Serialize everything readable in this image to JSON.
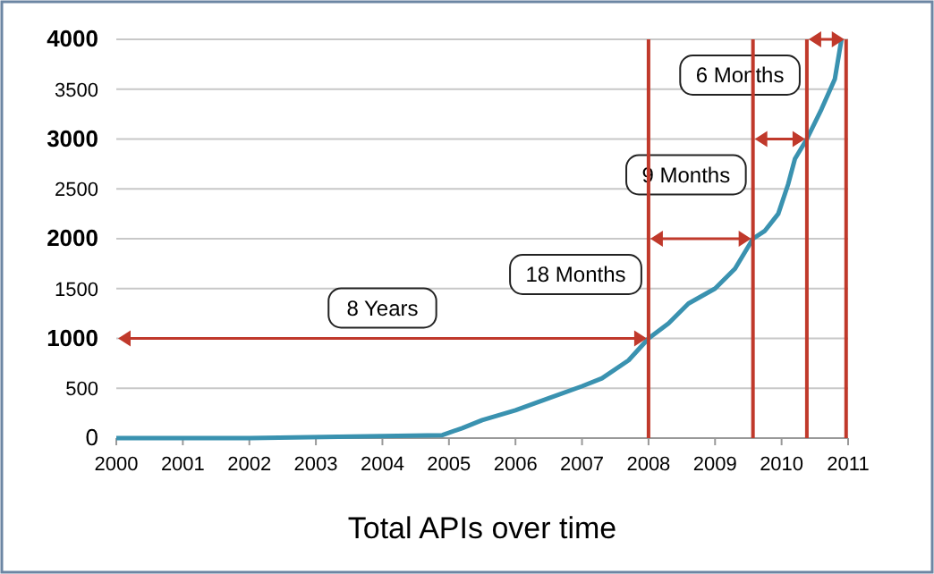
{
  "chart_data": {
    "type": "line",
    "title": "Total APIs over time",
    "xlim": [
      2000,
      2011
    ],
    "xticks": [
      2000,
      2001,
      2002,
      2003,
      2004,
      2005,
      2006,
      2007,
      2008,
      2009,
      2010,
      2011
    ],
    "ylim": [
      0,
      4000
    ],
    "yticks": [
      0,
      500,
      1000,
      1500,
      2000,
      2500,
      3000,
      3500,
      4000
    ],
    "grid": "y",
    "marker": "none",
    "line_style": "solid",
    "series": [
      {
        "color": "#3a92b0",
        "x": [
          2000,
          2002,
          2004,
          2004.9,
          2005.2,
          2005.5,
          2006,
          2006.5,
          2007,
          2007.3,
          2007.7,
          2008,
          2008.3,
          2008.6,
          2009,
          2009.3,
          2009.57,
          2009.75,
          2009.95,
          2010.1,
          2010.2,
          2010.38,
          2010.6,
          2010.8,
          2010.9
        ],
        "values": [
          0,
          0,
          20,
          30,
          100,
          180,
          280,
          400,
          520,
          600,
          780,
          1000,
          1150,
          1350,
          1500,
          1700,
          2000,
          2080,
          2250,
          2550,
          2800,
          3000,
          3300,
          3600,
          4000
        ]
      }
    ],
    "ref_lines": [
      {
        "axis": "x",
        "value": 2008,
        "color": "#c0392b"
      },
      {
        "axis": "x",
        "value": 2009.57,
        "color": "#c0392b"
      },
      {
        "axis": "x",
        "value": 2010.38,
        "color": "#c0392b"
      },
      {
        "axis": "x",
        "value": 2010.97,
        "color": "#c0392b"
      }
    ],
    "annotations": [
      "8 Years",
      "18 Months",
      "9 Months",
      "6 Months"
    ]
  }
}
